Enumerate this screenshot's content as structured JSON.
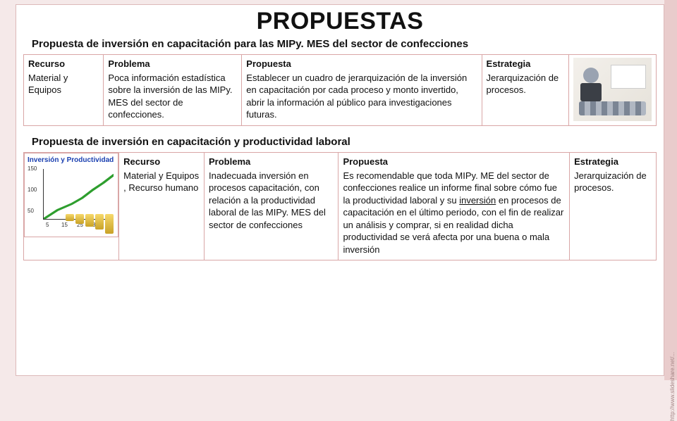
{
  "title": "PROPUESTAS",
  "section1": {
    "subtitle": "Propuesta de inversión en capacitación para las MIPy. MES del sector de confecciones",
    "headers": {
      "recurso": "Recurso",
      "problema": "Problema",
      "propuesta": "Propuesta",
      "estrategia": "Estrategia"
    },
    "row": {
      "recurso": "Material y Equipos",
      "problema": "Poca información estadística sobre la inversión de las MIPy. MES del sector de confecciones.",
      "propuesta": "Establecer un cuadro de jerarquización de la inversión en capacitación por cada proceso y monto invertido, abrir la información al público para investigaciones futuras.",
      "estrategia": "Jerarquización de procesos."
    },
    "image_alt": "presenter"
  },
  "section2": {
    "subtitle": "Propuesta de inversión en capacitación y productividad laboral",
    "headers": {
      "recurso": "Recurso",
      "problema": "Problema",
      "propuesta": "Propuesta",
      "estrategia": "Estrategia"
    },
    "row": {
      "recurso": "Material y Equipos , Recurso humano",
      "problema": "Inadecuada inversión en  procesos capacitación, con relación a la productividad laboral de las MIPy. MES del sector de confecciones",
      "propuesta_pre": "Es recomendable que toda MIPy. ME del sector de confecciones realice un informe final sobre cómo fue la productividad laboral y su ",
      "propuesta_underlined": "inversión",
      "propuesta_post": " en procesos de capacitación en el último periodo, con el fin de realizar un análisis y comprar, si en realidad dicha productividad se verá afecta por una buena o mala inversión",
      "estrategia": "Jerarquización de procesos."
    },
    "chart": {
      "title": "Inversión y Productividad",
      "line_color": "#2e9e2e",
      "axis_color": "#333333",
      "yticks": [
        "50",
        "100",
        "150"
      ],
      "xticks": [
        "5",
        "15",
        "25",
        "35"
      ],
      "points": [
        [
          0,
          0
        ],
        [
          20,
          18
        ],
        [
          40,
          30
        ],
        [
          55,
          42
        ],
        [
          70,
          58
        ],
        [
          85,
          72
        ],
        [
          100,
          88
        ]
      ],
      "coin_heights": [
        10,
        14,
        18,
        22,
        28
      ]
    }
  },
  "side_caption": "http://www.slideshare.net/..."
}
